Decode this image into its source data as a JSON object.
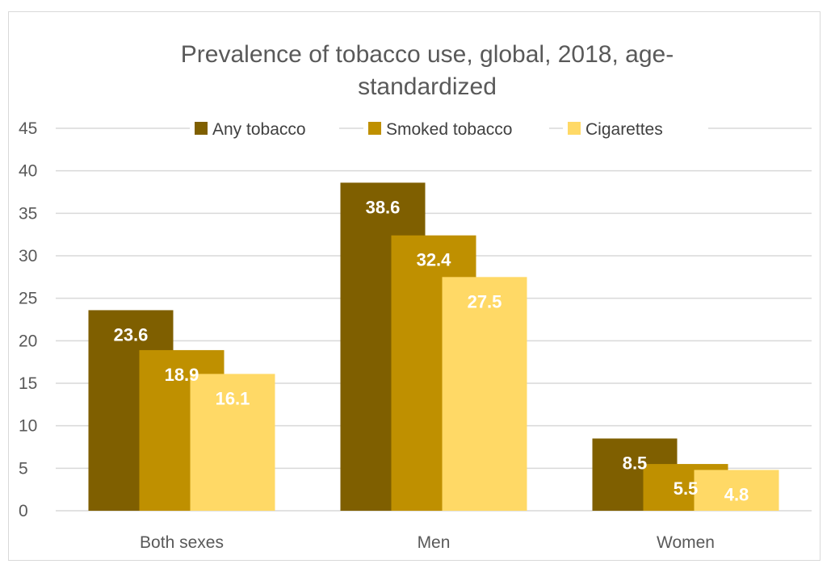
{
  "chart_data": {
    "type": "bar",
    "title": "Prevalence of tobacco use, global, 2018, age-standardized",
    "title_lines": [
      "Prevalence of tobacco use, global, 2018, age-",
      "standardized"
    ],
    "xlabel": "",
    "ylabel": "",
    "categories": [
      "Both sexes",
      "Men",
      "Women"
    ],
    "series": [
      {
        "name": "Any tobacco",
        "color": "#7f5f00",
        "values": [
          23.6,
          38.6,
          8.5
        ]
      },
      {
        "name": "Smoked tobacco",
        "color": "#bf9000",
        "values": [
          18.9,
          32.4,
          5.5
        ]
      },
      {
        "name": "Cigarettes",
        "color": "#ffd966",
        "values": [
          16.1,
          27.5,
          4.8
        ]
      }
    ],
    "ylim": [
      0,
      45
    ],
    "yticks": [
      0,
      5,
      10,
      15,
      20,
      25,
      30,
      35,
      40,
      45
    ],
    "grid": true,
    "legend": "top",
    "data_labels": true,
    "colors": {
      "gridline": "#d9d9d9",
      "text": "#595959",
      "label": "#ffffff"
    }
  }
}
